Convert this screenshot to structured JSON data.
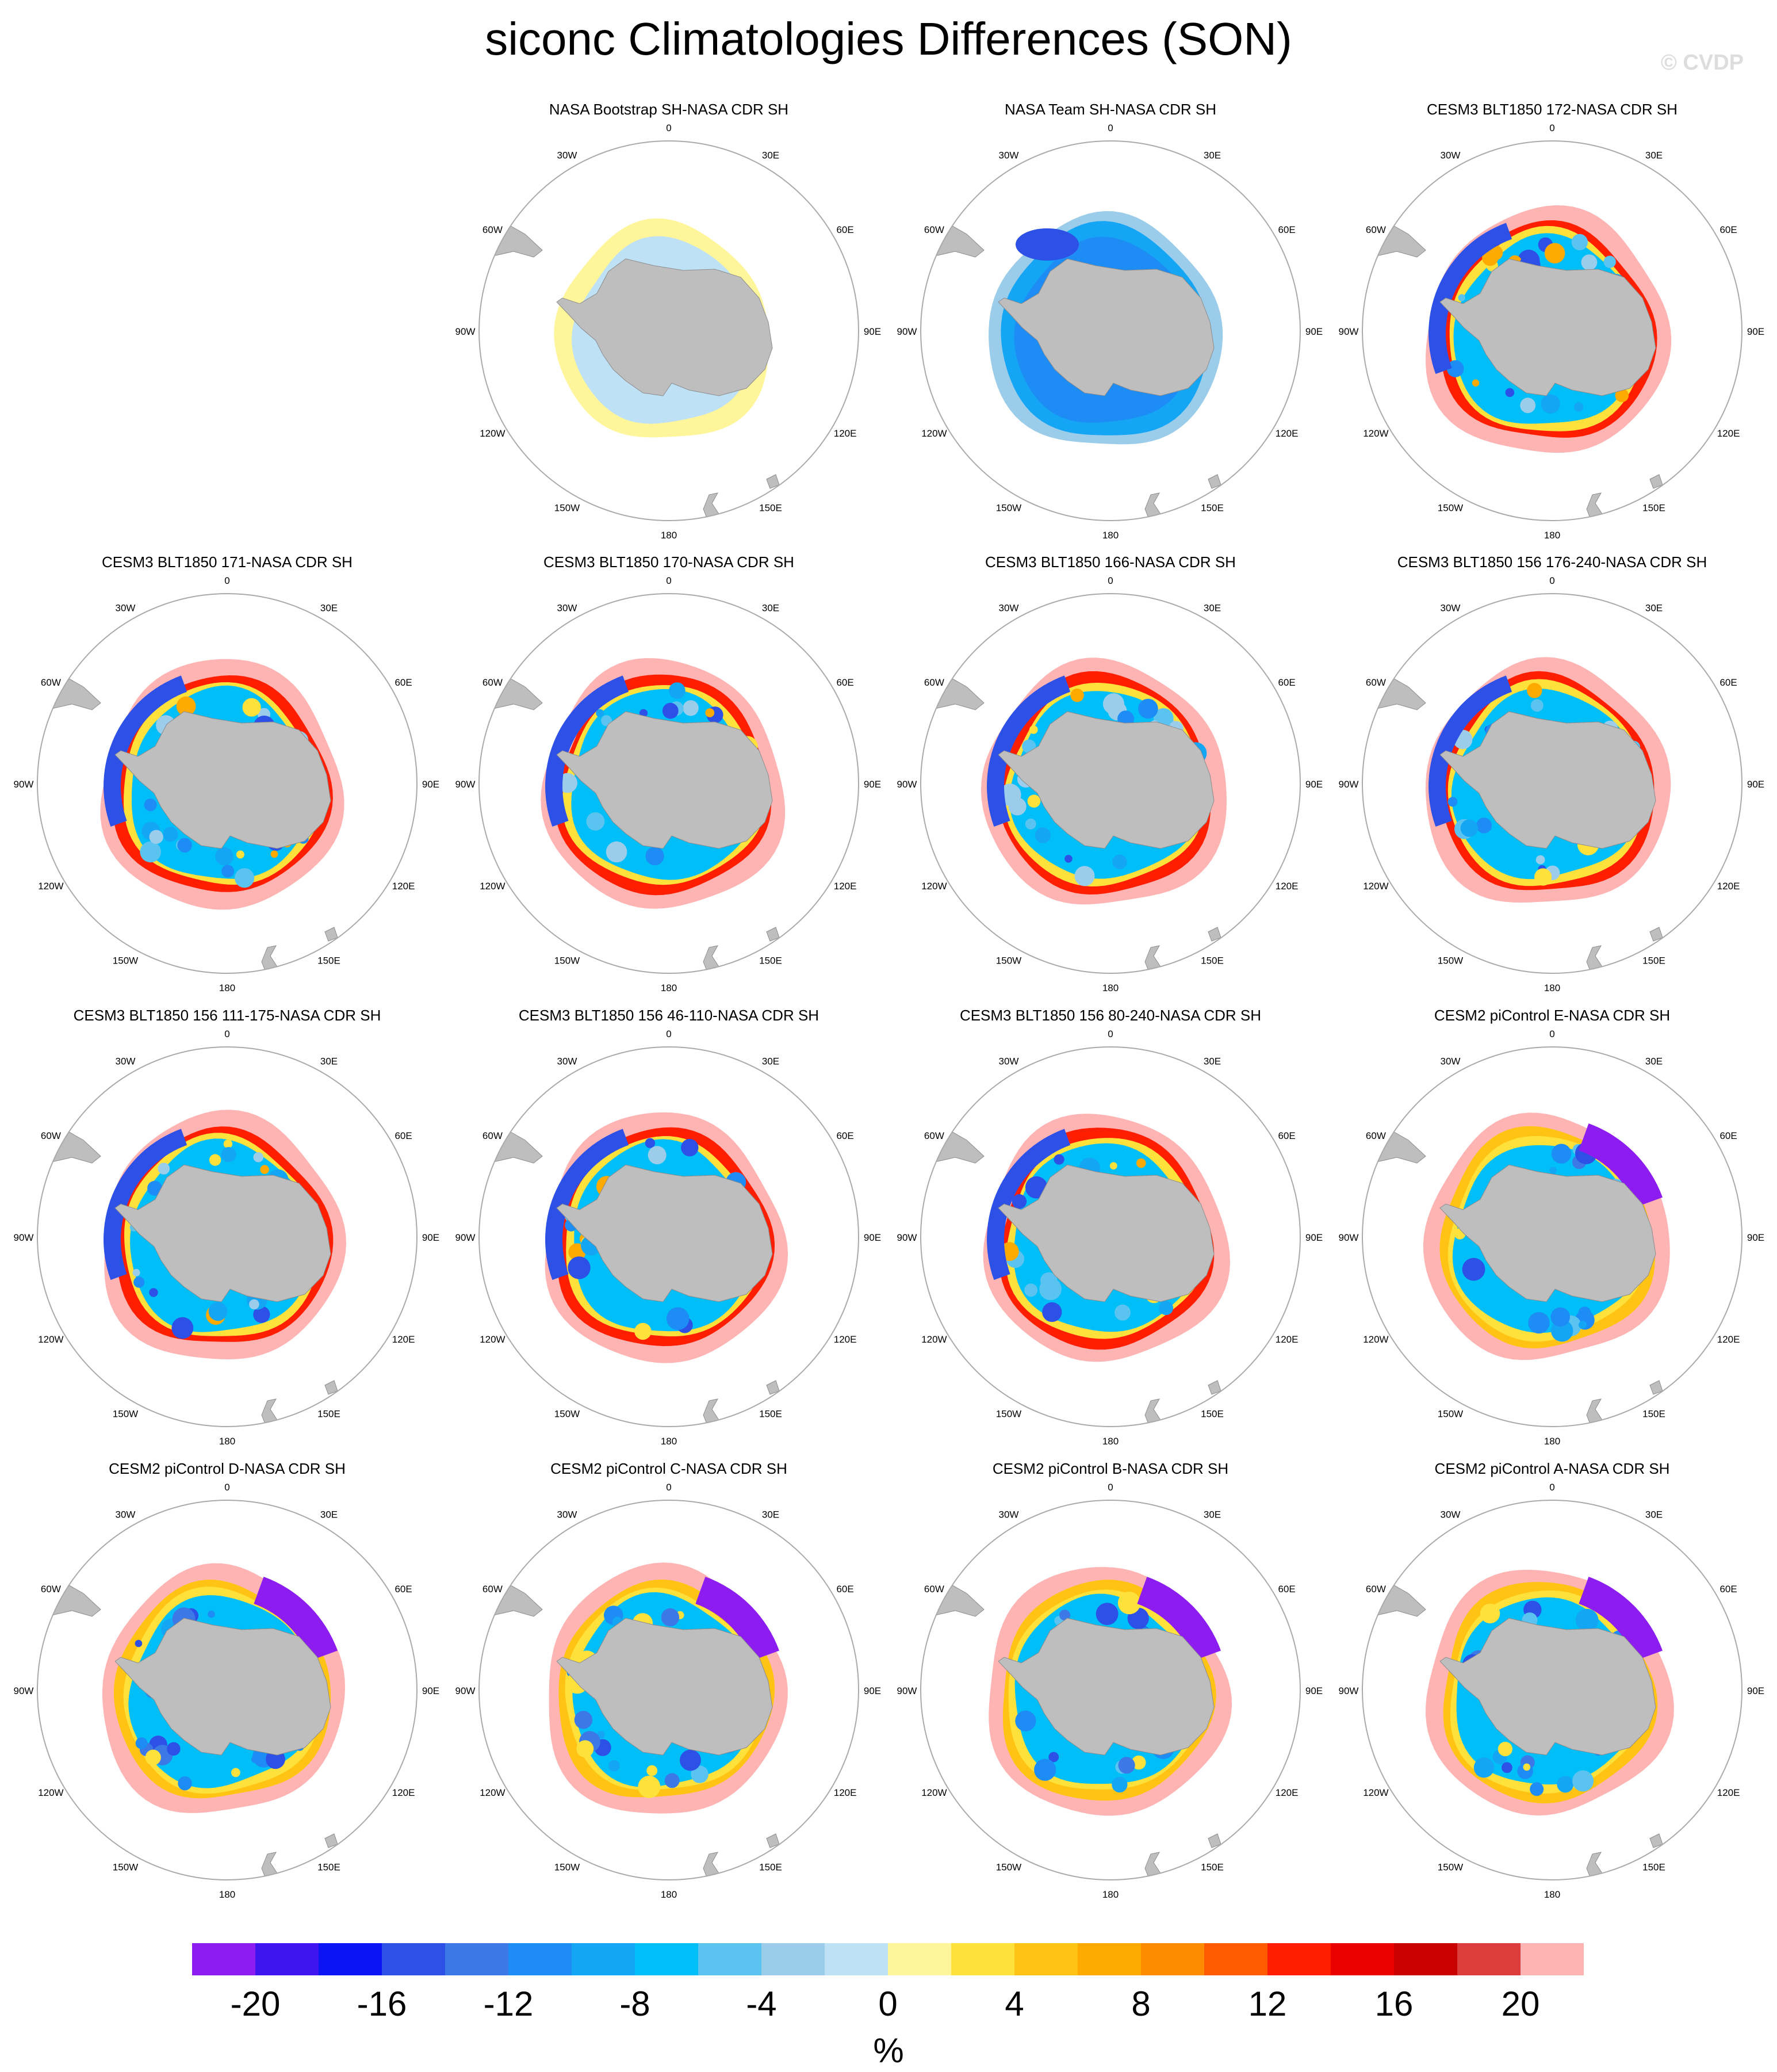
{
  "title": "siconc Climatologies Differences (SON)",
  "watermark": "© CVDP",
  "units": "%",
  "map_labels": {
    "lon": [
      "0",
      "30E",
      "60E",
      "90E",
      "120E",
      "150E",
      "180",
      "150W",
      "120W",
      "90W",
      "60W",
      "30W"
    ]
  },
  "colorbar": {
    "colors": [
      "#8c1cf0",
      "#3f14f0",
      "#0a14f5",
      "#2d50e6",
      "#3c78e6",
      "#1e8cf5",
      "#14a5f5",
      "#00bef8",
      "#5ac3f0",
      "#9bcdeb",
      "#bee1f5",
      "#fff59b",
      "#ffe13c",
      "#ffc314",
      "#ffaa00",
      "#ff8c00",
      "#ff5a00",
      "#ff1e00",
      "#eb0000",
      "#c80000",
      "#dc3c3c",
      "#ffb4b4"
    ],
    "tick_labels": [
      "-20",
      "-16",
      "-12",
      "-8",
      "-4",
      "0",
      "4",
      "8",
      "12",
      "16",
      "20"
    ]
  },
  "panels": [
    {
      "title": "NASA Bootstrap SH-NASA CDR SH",
      "style": "bootstrap"
    },
    {
      "title": "NASA Team SH-NASA CDR SH",
      "style": "team"
    },
    {
      "title": "CESM3 BLT1850 172-NASA CDR SH",
      "style": "cesm3"
    },
    {
      "title": "CESM3 BLT1850 171-NASA CDR SH",
      "style": "cesm3"
    },
    {
      "title": "CESM3 BLT1850 170-NASA CDR SH",
      "style": "cesm3"
    },
    {
      "title": "CESM3 BLT1850 166-NASA CDR SH",
      "style": "cesm3"
    },
    {
      "title": "CESM3 BLT1850 156 176-240-NASA CDR SH",
      "style": "cesm3"
    },
    {
      "title": "CESM3 BLT1850 156 111-175-NASA CDR SH",
      "style": "cesm3"
    },
    {
      "title": "CESM3 BLT1850 156 46-110-NASA CDR SH",
      "style": "cesm3"
    },
    {
      "title": "CESM3 BLT1850 156 80-240-NASA CDR SH",
      "style": "cesm3"
    },
    {
      "title": "CESM2 piControl E-NASA CDR SH",
      "style": "cesm2"
    },
    {
      "title": "CESM2 piControl D-NASA CDR SH",
      "style": "cesm2"
    },
    {
      "title": "CESM2 piControl C-NASA CDR SH",
      "style": "cesm2"
    },
    {
      "title": "CESM2 piControl B-NASA CDR SH",
      "style": "cesm2"
    },
    {
      "title": "CESM2 piControl A-NASA CDR SH",
      "style": "cesm2"
    }
  ]
}
